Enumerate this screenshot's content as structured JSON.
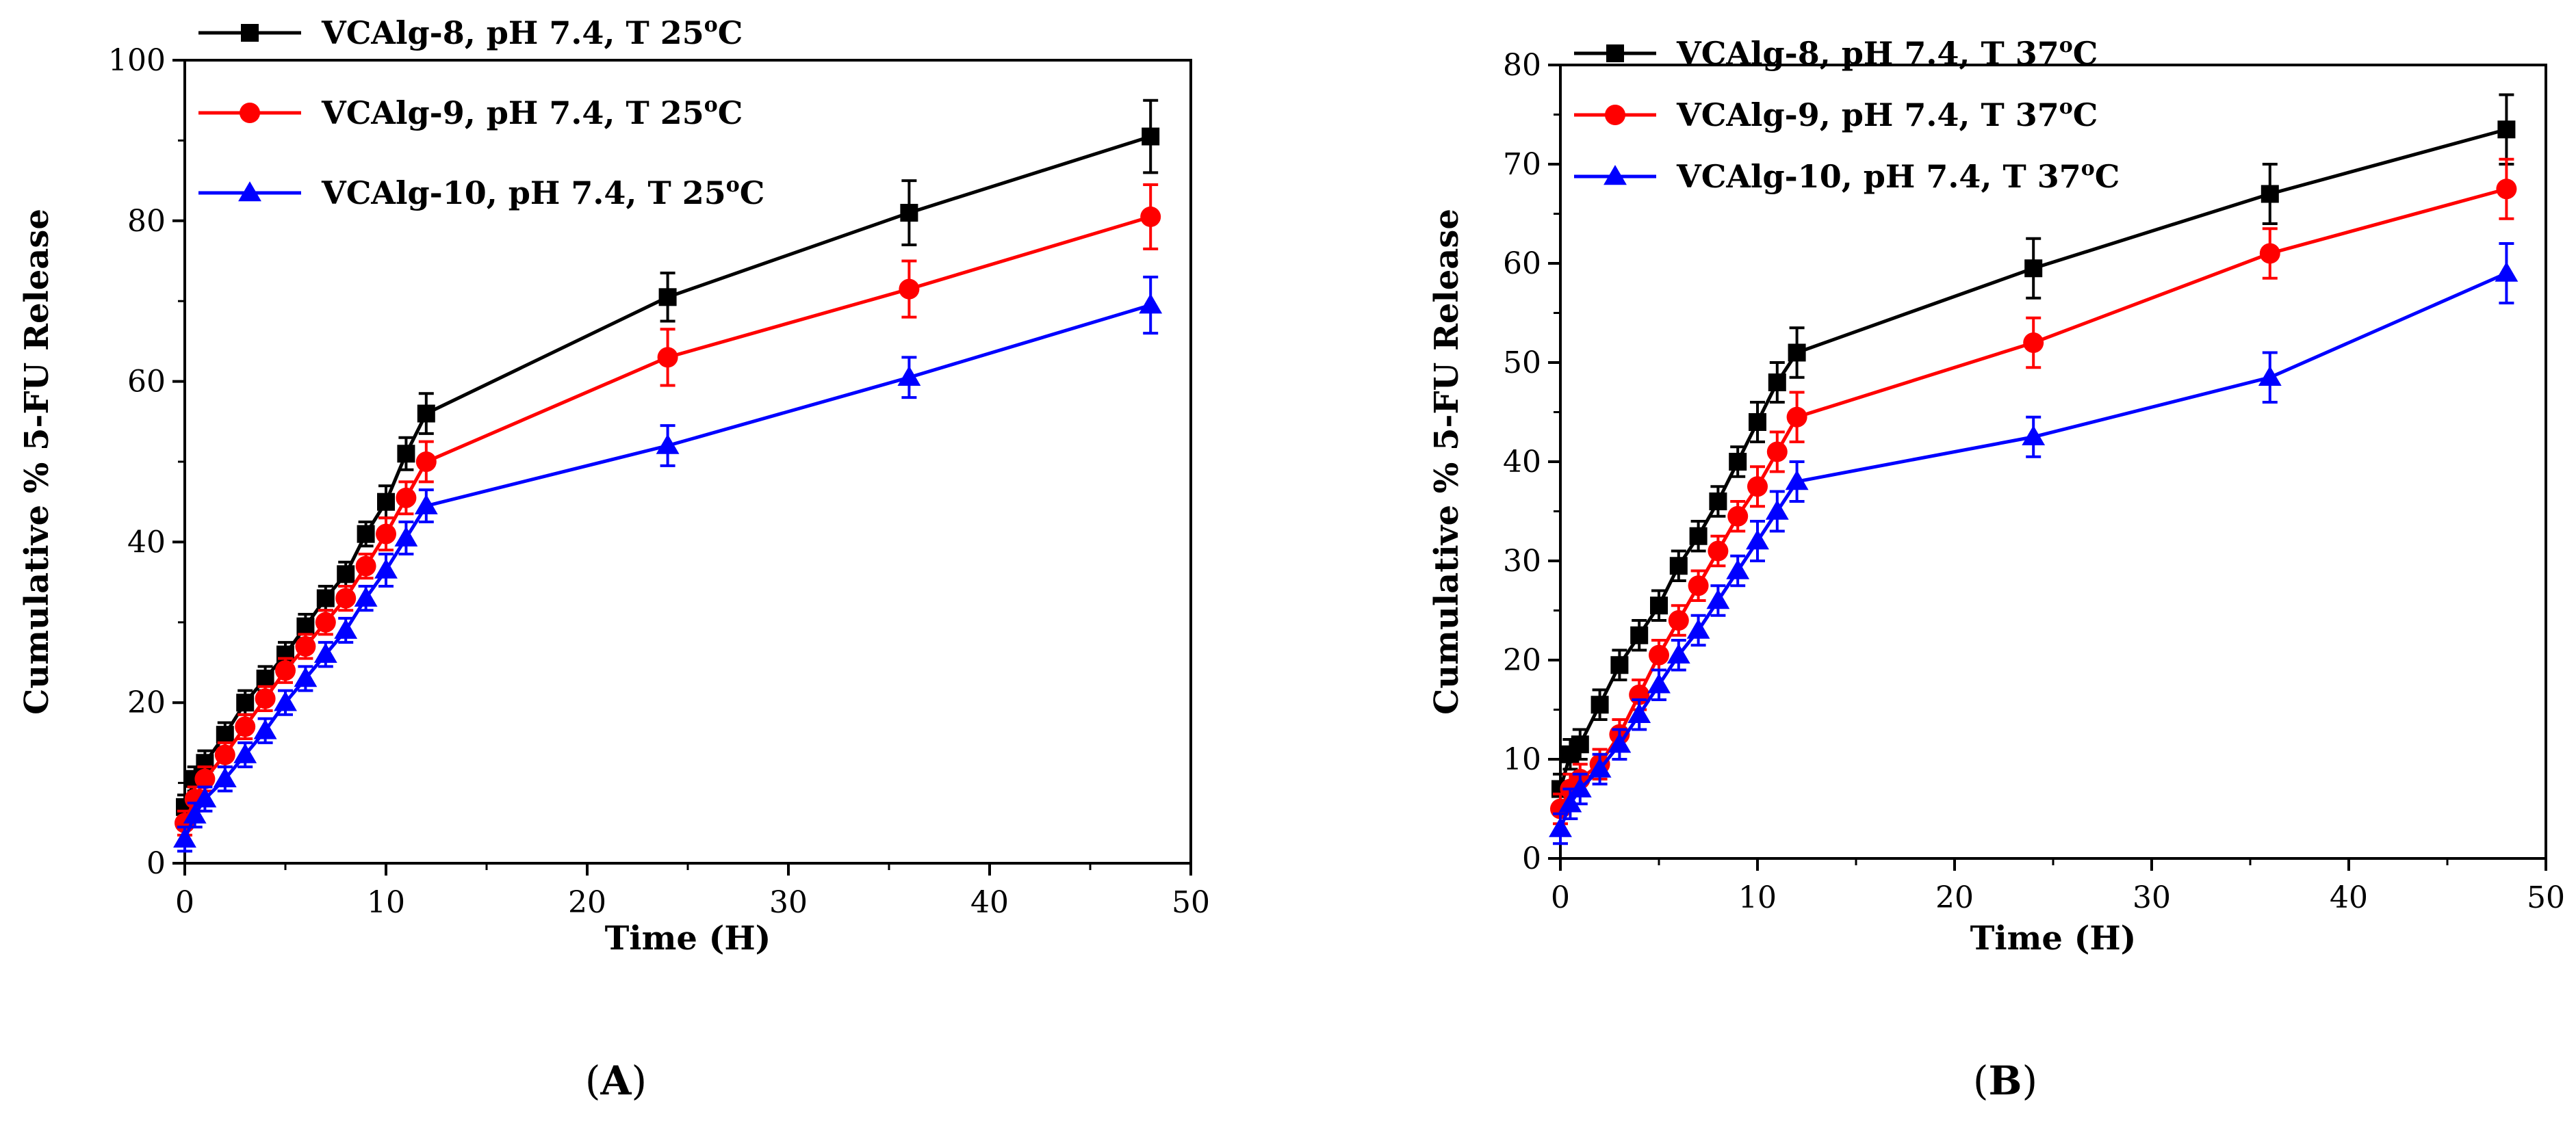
{
  "chart_data": [
    {
      "type": "line",
      "panel_label": "(A)",
      "panel_letter": "A",
      "xlabel": "Time (H)",
      "ylabel": "Cumulative % 5-FU Release",
      "xlim": [
        0,
        50
      ],
      "ylim": [
        0,
        100
      ],
      "xticks": [
        0,
        10,
        20,
        30,
        40,
        50
      ],
      "yticks": [
        0,
        20,
        40,
        60,
        80,
        100
      ],
      "grid": false,
      "legend_position": "top-left",
      "series": [
        {
          "name": "VCAlg-8, pH 7.4, T 25°C",
          "name_parts": [
            "VCAlg-8, pH 7.4, T 25",
            "o",
            "C"
          ],
          "color": "#000000",
          "marker": "square",
          "x": [
            0,
            0.5,
            1,
            2,
            3,
            4,
            5,
            6,
            7,
            8,
            9,
            10,
            11,
            12,
            24,
            36,
            48
          ],
          "y": [
            7,
            10.5,
            12.5,
            16,
            20,
            23,
            26,
            29.5,
            33,
            36,
            41,
            45,
            51,
            56,
            70.5,
            81,
            90.5
          ],
          "error": [
            1.5,
            1.5,
            1.5,
            1.5,
            1.5,
            1.5,
            1.5,
            1.5,
            1.5,
            1.5,
            1.5,
            2,
            2,
            2.5,
            3,
            4,
            4.5
          ]
        },
        {
          "name": "VCAlg-9, pH 7.4, T 25°C",
          "name_parts": [
            "VCAlg-9, pH 7.4, T 25",
            "o",
            "C"
          ],
          "color": "#ff0000",
          "marker": "circle",
          "x": [
            0,
            0.5,
            1,
            2,
            3,
            4,
            5,
            6,
            7,
            8,
            9,
            10,
            11,
            12,
            24,
            36,
            48
          ],
          "y": [
            5,
            8,
            10.5,
            13.5,
            17,
            20.5,
            24,
            27,
            30,
            33,
            37,
            41,
            45.5,
            50,
            63,
            71.5,
            80.5
          ],
          "error": [
            1.5,
            1.5,
            1.5,
            1.5,
            1.5,
            1.5,
            1.5,
            1.5,
            1.5,
            1.5,
            1.5,
            2,
            2,
            2.5,
            3.5,
            3.5,
            4
          ]
        },
        {
          "name": "VCAlg-10, pH 7.4, T 25°C",
          "name_parts": [
            "VCAlg-10, pH 7.4, T 25",
            "o",
            "C"
          ],
          "color": "#0000ff",
          "marker": "triangle",
          "x": [
            0,
            0.5,
            1,
            2,
            3,
            4,
            5,
            6,
            7,
            8,
            9,
            10,
            11,
            12,
            24,
            36,
            48
          ],
          "y": [
            3,
            6,
            8,
            10.5,
            13.5,
            16.5,
            20,
            23,
            26,
            29,
            33,
            36.5,
            40.5,
            44.5,
            52,
            60.5,
            69.5
          ],
          "error": [
            1.5,
            1.5,
            1.5,
            1.5,
            1.5,
            1.5,
            1.5,
            1.5,
            1.5,
            1.5,
            1.5,
            2,
            2,
            2,
            2.5,
            2.5,
            3.5
          ]
        }
      ]
    },
    {
      "type": "line",
      "panel_label": "(B)",
      "panel_letter": "B",
      "xlabel": "Time (H)",
      "ylabel": "Cumulative % 5-FU Release",
      "xlim": [
        0,
        50
      ],
      "ylim": [
        0,
        80
      ],
      "xticks": [
        0,
        10,
        20,
        30,
        40,
        50
      ],
      "yticks": [
        0,
        10,
        20,
        30,
        40,
        50,
        60,
        70,
        80
      ],
      "grid": false,
      "legend_position": "top-left",
      "series": [
        {
          "name": "VCAlg-8, pH 7.4, T 37°C",
          "name_parts": [
            "VCAlg-8, pH 7.4, T 37",
            "o",
            "C"
          ],
          "color": "#000000",
          "marker": "square",
          "x": [
            0,
            0.5,
            1,
            2,
            3,
            4,
            5,
            6,
            7,
            8,
            9,
            10,
            11,
            12,
            24,
            36,
            48
          ],
          "y": [
            7,
            10.5,
            11.5,
            15.5,
            19.5,
            22.5,
            25.5,
            29.5,
            32.5,
            36,
            40,
            44,
            48,
            51,
            59.5,
            67,
            73.5
          ],
          "error": [
            1.5,
            1.5,
            1.5,
            1.5,
            1.5,
            1.5,
            1.5,
            1.5,
            1.5,
            1.5,
            1.5,
            2,
            2,
            2.5,
            3,
            3,
            3.5
          ]
        },
        {
          "name": "VCAlg-9, pH 7.4, T 37°C",
          "name_parts": [
            "VCAlg-9, pH 7.4, T 37",
            "o",
            "C"
          ],
          "color": "#ff0000",
          "marker": "circle",
          "x": [
            0,
            0.5,
            1,
            2,
            3,
            4,
            5,
            6,
            7,
            8,
            9,
            10,
            11,
            12,
            24,
            36,
            48
          ],
          "y": [
            5,
            7,
            8,
            9.5,
            12.5,
            16.5,
            20.5,
            24,
            27.5,
            31,
            34.5,
            37.5,
            41,
            44.5,
            52,
            61,
            67.5
          ],
          "error": [
            1.5,
            1.5,
            1.5,
            1.5,
            1.5,
            1.5,
            1.5,
            1.5,
            1.5,
            1.5,
            1.5,
            2,
            2,
            2.5,
            2.5,
            2.5,
            3
          ]
        },
        {
          "name": "VCAlg-10, pH 7.4, T 37°C",
          "name_parts": [
            "VCAlg-10, pH 7.4, T 37",
            "o",
            "C"
          ],
          "color": "#0000ff",
          "marker": "triangle",
          "x": [
            0,
            0.5,
            1,
            2,
            3,
            4,
            5,
            6,
            7,
            8,
            9,
            10,
            11,
            12,
            24,
            36,
            48
          ],
          "y": [
            3,
            5.5,
            7,
            9,
            11.5,
            14.5,
            17.5,
            20.5,
            23,
            26,
            29,
            32,
            35,
            38,
            42.5,
            48.5,
            59
          ],
          "error": [
            1.5,
            1.5,
            1.5,
            1.5,
            1.5,
            1.5,
            1.5,
            1.5,
            1.5,
            1.5,
            1.5,
            2,
            2,
            2,
            2,
            2.5,
            3
          ]
        }
      ]
    }
  ]
}
